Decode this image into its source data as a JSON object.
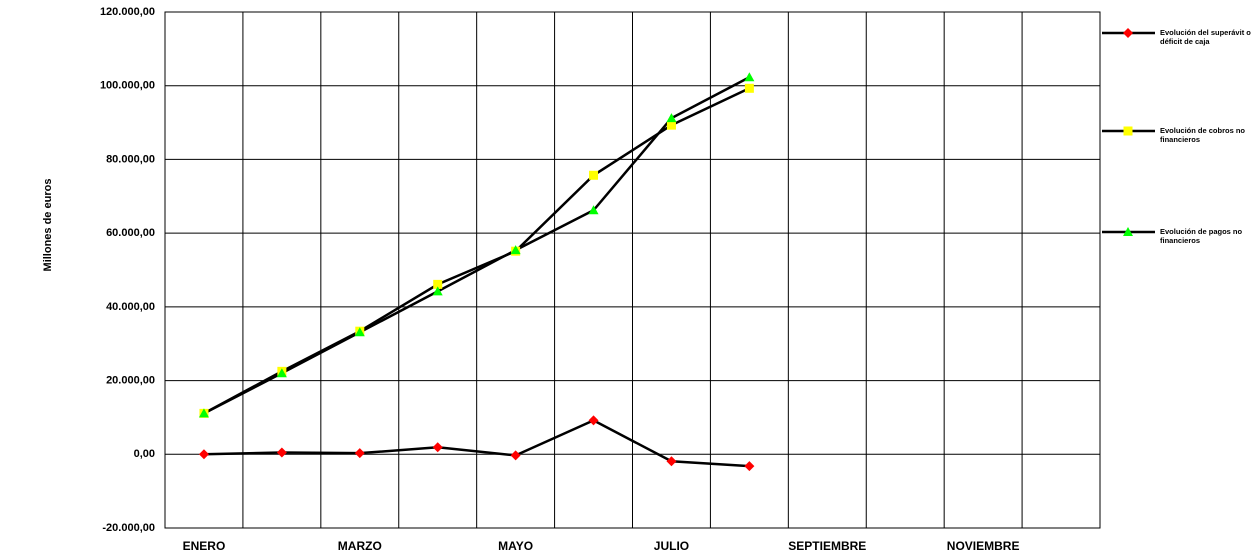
{
  "chart_data": {
    "type": "line",
    "y_label": "Millones de euros",
    "categories": [
      "ENERO",
      null,
      "MARZO",
      null,
      "MAYO",
      null,
      "JULIO",
      null,
      "SEPTIEMBRE",
      null,
      "NOVIEMBRE",
      null
    ],
    "line_color": "#000000",
    "series": [
      {
        "name": "Evolución del superávit o déficit de caja",
        "color": "#ff0000",
        "marker": "diamond",
        "values": [
          0,
          500,
          300,
          1900,
          -300,
          9200,
          -1900,
          -3200,
          null,
          null,
          null,
          null
        ]
      },
      {
        "name": "Evolución de cobros no financieros",
        "color": "#ffff00",
        "marker": "square",
        "values": [
          11100,
          22500,
          33400,
          46100,
          55100,
          75700,
          89300,
          99300,
          null,
          null,
          null,
          null
        ]
      },
      {
        "name": "Evolución de pagos no financieros",
        "color": "#00ff00",
        "marker": "triangle",
        "values": [
          11100,
          22000,
          33100,
          44200,
          55400,
          66200,
          91200,
          102300,
          null,
          null,
          null,
          null
        ]
      }
    ],
    "ylim": [
      -20000,
      120000
    ],
    "yticks": [
      {
        "value": -20000,
        "label": "-20.000,00"
      },
      {
        "value": 0,
        "label": "0,00"
      },
      {
        "value": 20000,
        "label": "20.000,00"
      },
      {
        "value": 40000,
        "label": "40.000,00"
      },
      {
        "value": 60000,
        "label": "60.000,00"
      },
      {
        "value": 80000,
        "label": "80.000,00"
      },
      {
        "value": 100000,
        "label": "100.000,00"
      },
      {
        "value": 120000,
        "label": "120.000,00"
      }
    ],
    "grid": true
  }
}
